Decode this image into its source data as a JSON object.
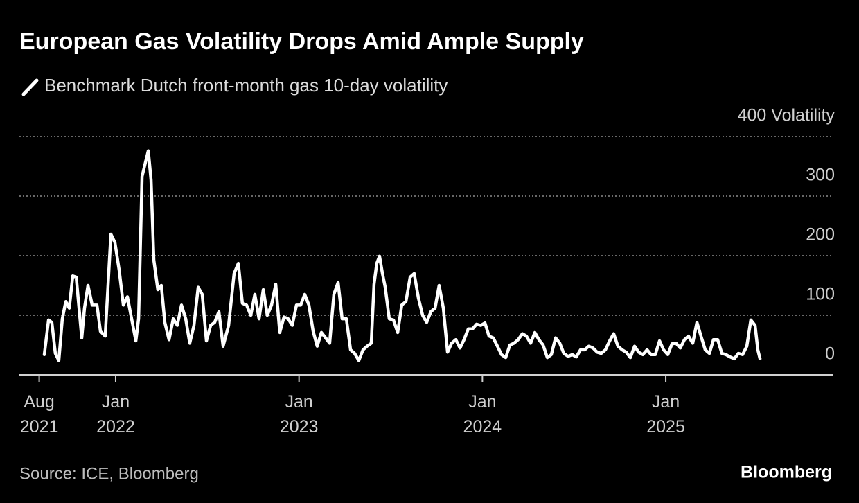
{
  "chart_data": {
    "type": "line",
    "title": "European Gas Volatility Drops Amid Ample Supply",
    "source": "Source: ICE, Bloomberg",
    "logo": "Bloomberg",
    "grid": true,
    "xlim": [
      2021.475,
      2025.914
    ],
    "ylim": [
      0,
      400
    ],
    "yticks": [
      0,
      100,
      200,
      300,
      {
        "value": 400,
        "label": "400 Volatility"
      }
    ],
    "xticks": [
      {
        "value": 2021.583,
        "label": "Aug 2021"
      },
      {
        "value": 2022,
        "label": "Jan 2022"
      },
      {
        "value": 2023,
        "label": "Jan 2023"
      },
      {
        "value": 2024,
        "label": "Jan 2024"
      },
      {
        "value": 2025,
        "label": "Jan 2025"
      }
    ],
    "x": [
      2021.611,
      2021.634,
      2021.652,
      2021.671,
      2021.69,
      2021.709,
      2021.728,
      2021.747,
      2021.766,
      2021.785,
      2021.815,
      2021.83,
      2021.849,
      2021.872,
      2021.898,
      2021.917,
      2021.943,
      2021.974,
      2021.996,
      2022.019,
      2022.042,
      2022.064,
      2022.087,
      2022.11,
      2022.125,
      2022.144,
      2022.162,
      2022.178,
      2022.193,
      2022.208,
      2022.23,
      2022.249,
      2022.268,
      2022.291,
      2022.314,
      2022.336,
      2022.359,
      2022.382,
      2022.404,
      2022.427,
      2022.45,
      2022.472,
      2022.495,
      2022.518,
      2022.54,
      2022.563,
      2022.586,
      2022.616,
      2022.646,
      2022.669,
      2022.691,
      2022.714,
      2022.737,
      2022.759,
      2022.782,
      2022.805,
      2022.827,
      2022.85,
      2022.873,
      2022.895,
      2022.918,
      2022.941,
      2022.963,
      2022.986,
      2023.009,
      2023.031,
      2023.054,
      2023.077,
      2023.099,
      2023.122,
      2023.145,
      2023.167,
      2023.19,
      2023.213,
      2023.235,
      2023.258,
      2023.281,
      2023.303,
      2023.326,
      2023.349,
      2023.371,
      2023.394,
      2023.409,
      2023.424,
      2023.439,
      2023.455,
      2023.47,
      2023.492,
      2023.515,
      2023.538,
      2023.56,
      2023.583,
      2023.606,
      2023.628,
      2023.651,
      2023.674,
      2023.696,
      2023.719,
      2023.742,
      2023.764,
      2023.787,
      2023.81,
      2023.832,
      2023.855,
      2023.878,
      2023.9,
      2023.923,
      2023.946,
      2023.968,
      2023.991,
      2024.014,
      2024.036,
      2024.059,
      2024.082,
      2024.104,
      2024.127,
      2024.15,
      2024.172,
      2024.195,
      2024.218,
      2024.24,
      2024.263,
      2024.286,
      2024.308,
      2024.331,
      2024.354,
      2024.376,
      2024.399,
      2024.422,
      2024.444,
      2024.467,
      2024.49,
      2024.512,
      2024.535,
      2024.558,
      2024.58,
      2024.603,
      2024.626,
      2024.648,
      2024.671,
      2024.694,
      2024.716,
      2024.739,
      2024.762,
      2024.784,
      2024.807,
      2024.83,
      2024.852,
      2024.875,
      2024.898,
      2024.92,
      2024.943,
      2024.966,
      2024.988,
      2025.011,
      2025.034,
      2025.056,
      2025.079,
      2025.102,
      2025.124,
      2025.147,
      2025.17,
      2025.192,
      2025.215,
      2025.238,
      2025.26,
      2025.283,
      2025.306,
      2025.328,
      2025.351,
      2025.374,
      2025.396,
      2025.419,
      2025.442,
      2025.464,
      2025.487,
      2025.502,
      2025.514
    ],
    "series": [
      {
        "name": "Benchmark Dutch front-month gas 10-day volatility",
        "color": "#ffffff",
        "values": [
          34,
          92,
          88,
          36,
          24,
          94,
          123,
          112,
          166,
          164,
          62,
          112,
          150,
          117,
          117,
          73,
          65,
          236,
          222,
          176,
          117,
          131,
          94,
          57,
          94,
          333,
          356,
          376,
          327,
          193,
          143,
          150,
          88,
          59,
          94,
          83,
          117,
          94,
          53,
          83,
          147,
          135,
          57,
          83,
          88,
          106,
          48,
          83,
          170,
          187,
          120,
          117,
          100,
          135,
          94,
          143,
          100,
          117,
          152,
          71,
          97,
          94,
          83,
          117,
          117,
          135,
          117,
          73,
          48,
          71,
          62,
          53,
          135,
          155,
          94,
          94,
          42,
          36,
          24,
          42,
          48,
          53,
          152,
          187,
          199,
          170,
          147,
          94,
          92,
          71,
          117,
          123,
          164,
          170,
          129,
          100,
          88,
          106,
          112,
          150,
          112,
          38,
          53,
          59,
          45,
          59,
          77,
          77,
          85,
          83,
          87,
          65,
          62,
          48,
          34,
          29,
          50,
          53,
          59,
          69,
          65,
          53,
          71,
          59,
          50,
          29,
          34,
          62,
          53,
          36,
          31,
          34,
          30,
          42,
          42,
          48,
          45,
          38,
          36,
          42,
          57,
          69,
          48,
          42,
          38,
          29,
          48,
          38,
          34,
          42,
          34,
          34,
          57,
          42,
          34,
          52,
          53,
          45,
          59,
          65,
          53,
          88,
          65,
          42,
          36,
          59,
          59,
          36,
          34,
          30,
          27,
          36,
          34,
          48,
          92,
          83,
          42,
          27
        ]
      }
    ]
  }
}
